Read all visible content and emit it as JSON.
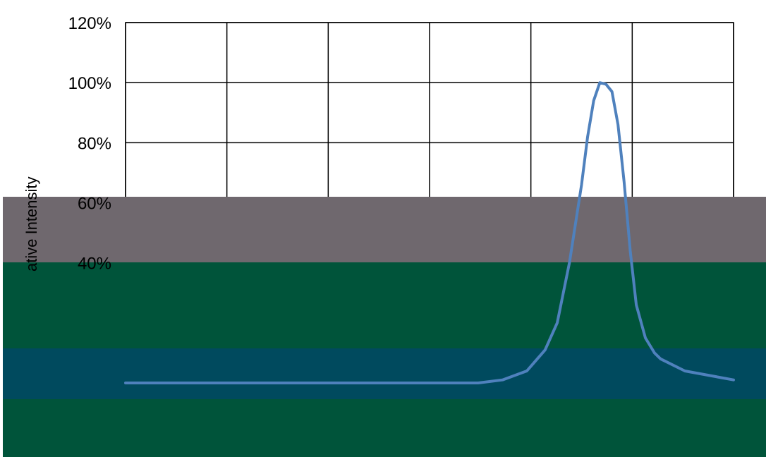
{
  "chart_data": {
    "type": "line",
    "title": "",
    "xlabel": "",
    "ylabel": "ative Intensity",
    "ylim": [
      0,
      1.2
    ],
    "y_ticks": [
      {
        "value": 1.2,
        "label": "120%"
      },
      {
        "value": 1.0,
        "label": "100%"
      },
      {
        "value": 0.8,
        "label": "80%"
      },
      {
        "value": 0.6,
        "label": "60%"
      },
      {
        "value": 0.4,
        "label": "40%"
      }
    ],
    "x_divisions": 6,
    "grid": true,
    "series": [
      {
        "color": "#4f81bd",
        "x": [
          0.0,
          0.58,
          0.62,
          0.66,
          0.69,
          0.71,
          0.73,
          0.75,
          0.76,
          0.77,
          0.78,
          0.79,
          0.8,
          0.81,
          0.82,
          0.83,
          0.84,
          0.855,
          0.87,
          0.88,
          0.92,
          1.0
        ],
        "y": [
          0.0,
          0.0,
          0.01,
          0.04,
          0.11,
          0.2,
          0.4,
          0.66,
          0.82,
          0.94,
          1.0,
          0.995,
          0.97,
          0.86,
          0.67,
          0.44,
          0.26,
          0.15,
          0.1,
          0.08,
          0.04,
          0.01
        ]
      }
    ],
    "colors": {
      "grey_overlay": "#6f686e",
      "green_overlay": "#00543a",
      "teal_overlay": "#004a5e"
    }
  }
}
